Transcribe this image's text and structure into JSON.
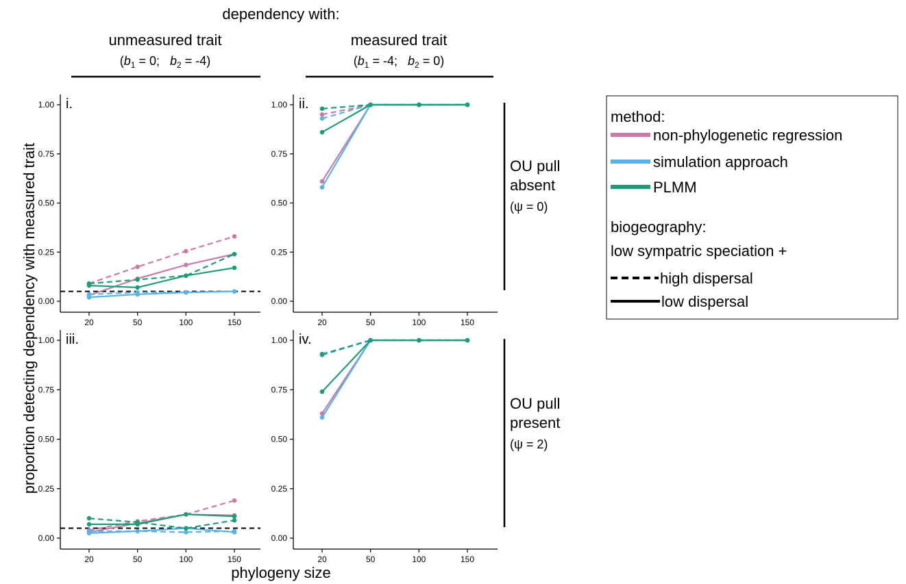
{
  "figure": {
    "super_header": "dependency with:",
    "col_headers": [
      {
        "title": "unmeasured trait",
        "params": {
          "b1_var": "b",
          "b1_sub": "1",
          "b1_val": " = 0;   ",
          "b2_var": "b",
          "b2_sub": "2",
          "b2_val": " = -4)"
        }
      },
      {
        "title": "measured trait",
        "params": {
          "b1_var": "b",
          "b1_sub": "1",
          "b1_val": " = -4;   ",
          "b2_var": "b",
          "b2_sub": "2",
          "b2_val": " = 0)"
        }
      }
    ],
    "row_headers": [
      {
        "line1": "OU pull",
        "line2": "absent",
        "line3": "(ψ = 0)"
      },
      {
        "line1": "OU pull",
        "line2": "present",
        "line3": "(ψ = 2)"
      }
    ],
    "panel_tags": [
      "i.",
      "ii.",
      "iii.",
      "iv."
    ],
    "xlabel": "phylogeny size",
    "ylabel": "proportion detecting dependency with measured trait",
    "legend": {
      "method_title": "method:",
      "methods": [
        {
          "label": "non-phylogenetic regression",
          "color": "#cc79a7"
        },
        {
          "label": "simulation approach",
          "color": "#56b4e9"
        },
        {
          "label": "PLMM",
          "color": "#1a9e77"
        }
      ],
      "biogeo_title": "biogeography:",
      "biogeo_subtitle": "low sympatric speciation +",
      "dispersal": [
        {
          "label": "high dispersal",
          "dash": "dashed"
        },
        {
          "label": "low dispersal",
          "dash": "solid"
        }
      ]
    }
  },
  "chart_data": {
    "type": "line",
    "x": [
      20,
      50,
      100,
      150
    ],
    "xticks": [
      "20",
      "50",
      "100",
      "150"
    ],
    "yticks": [
      "0.00",
      "0.25",
      "0.50",
      "0.75",
      "1.00"
    ],
    "ylim": [
      0,
      1
    ],
    "reference_line": 0.05,
    "grid": false,
    "panels": [
      {
        "tag": "i.",
        "show_reference": true,
        "series": [
          {
            "method": "non-phylogenetic regression",
            "dispersal": "high dispersal",
            "color": "#cc79a7",
            "values": [
              0.09,
              0.175,
              0.255,
              0.33
            ]
          },
          {
            "method": "non-phylogenetic regression",
            "dispersal": "low dispersal",
            "color": "#cc79a7",
            "values": [
              0.03,
              0.115,
              0.185,
              0.24
            ]
          },
          {
            "method": "simulation approach",
            "dispersal": "high dispersal",
            "color": "#56b4e9",
            "values": [
              0.035,
              0.045,
              0.045,
              0.05
            ]
          },
          {
            "method": "simulation approach",
            "dispersal": "low dispersal",
            "color": "#56b4e9",
            "values": [
              0.02,
              0.035,
              0.045,
              0.05
            ]
          },
          {
            "method": "PLMM",
            "dispersal": "high dispersal",
            "color": "#1a9e77",
            "values": [
              0.09,
              0.11,
              0.13,
              0.24
            ]
          },
          {
            "method": "PLMM",
            "dispersal": "low dispersal",
            "color": "#1a9e77",
            "values": [
              0.08,
              0.07,
              0.13,
              0.17
            ]
          }
        ]
      },
      {
        "tag": "ii.",
        "show_reference": false,
        "series": [
          {
            "method": "non-phylogenetic regression",
            "dispersal": "high dispersal",
            "color": "#cc79a7",
            "values": [
              0.95,
              1.0,
              1.0,
              1.0
            ]
          },
          {
            "method": "non-phylogenetic regression",
            "dispersal": "low dispersal",
            "color": "#cc79a7",
            "values": [
              0.61,
              1.0,
              1.0,
              1.0
            ]
          },
          {
            "method": "simulation approach",
            "dispersal": "high dispersal",
            "color": "#56b4e9",
            "values": [
              0.93,
              1.0,
              1.0,
              1.0
            ]
          },
          {
            "method": "simulation approach",
            "dispersal": "low dispersal",
            "color": "#56b4e9",
            "values": [
              0.58,
              1.0,
              1.0,
              1.0
            ]
          },
          {
            "method": "PLMM",
            "dispersal": "high dispersal",
            "color": "#1a9e77",
            "values": [
              0.98,
              1.0,
              1.0,
              1.0
            ]
          },
          {
            "method": "PLMM",
            "dispersal": "low dispersal",
            "color": "#1a9e77",
            "values": [
              0.86,
              1.0,
              1.0,
              1.0
            ]
          }
        ]
      },
      {
        "tag": "iii.",
        "show_reference": true,
        "series": [
          {
            "method": "non-phylogenetic regression",
            "dispersal": "high dispersal",
            "color": "#cc79a7",
            "values": [
              0.04,
              0.085,
              0.12,
              0.19
            ]
          },
          {
            "method": "non-phylogenetic regression",
            "dispersal": "low dispersal",
            "color": "#cc79a7",
            "values": [
              0.03,
              0.075,
              0.12,
              0.115
            ]
          },
          {
            "method": "simulation approach",
            "dispersal": "high dispersal",
            "color": "#56b4e9",
            "values": [
              0.035,
              0.035,
              0.03,
              0.035
            ]
          },
          {
            "method": "simulation approach",
            "dispersal": "low dispersal",
            "color": "#56b4e9",
            "values": [
              0.025,
              0.035,
              0.05,
              0.03
            ]
          },
          {
            "method": "PLMM",
            "dispersal": "high dispersal",
            "color": "#1a9e77",
            "values": [
              0.1,
              0.08,
              0.05,
              0.09
            ]
          },
          {
            "method": "PLMM",
            "dispersal": "low dispersal",
            "color": "#1a9e77",
            "values": [
              0.07,
              0.07,
              0.12,
              0.11
            ]
          }
        ]
      },
      {
        "tag": "iv.",
        "show_reference": false,
        "series": [
          {
            "method": "non-phylogenetic regression",
            "dispersal": "high dispersal",
            "color": "#cc79a7",
            "values": [
              0.925,
              1.0,
              1.0,
              1.0
            ]
          },
          {
            "method": "non-phylogenetic regression",
            "dispersal": "low dispersal",
            "color": "#cc79a7",
            "values": [
              0.63,
              1.0,
              1.0,
              1.0
            ]
          },
          {
            "method": "simulation approach",
            "dispersal": "high dispersal",
            "color": "#56b4e9",
            "values": [
              0.925,
              1.0,
              1.0,
              1.0
            ]
          },
          {
            "method": "simulation approach",
            "dispersal": "low dispersal",
            "color": "#56b4e9",
            "values": [
              0.61,
              1.0,
              1.0,
              1.0
            ]
          },
          {
            "method": "PLMM",
            "dispersal": "high dispersal",
            "color": "#1a9e77",
            "values": [
              0.93,
              1.0,
              1.0,
              1.0
            ]
          },
          {
            "method": "PLMM",
            "dispersal": "low dispersal",
            "color": "#1a9e77",
            "values": [
              0.74,
              1.0,
              1.0,
              1.0
            ]
          }
        ]
      }
    ]
  }
}
